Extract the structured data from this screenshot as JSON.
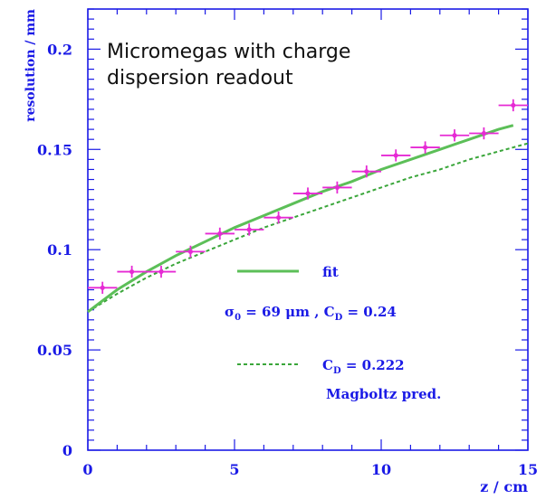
{
  "colors": {
    "frame": "#1a1ae6",
    "data_points": "#e62ad4",
    "fit_line": "#5cbf58",
    "prediction_line": "#3aa63a",
    "text": "#1a1ae6",
    "title_text": "#111111"
  },
  "chart_data": {
    "type": "scatter",
    "title_lines": [
      "Micromegas with charge",
      "dispersion readout"
    ],
    "xlabel": "z / cm",
    "ylabel": "resolution / mm",
    "xlim": [
      0,
      15
    ],
    "ylim": [
      0,
      0.22
    ],
    "x_ticks": [
      0,
      5,
      10,
      15
    ],
    "x_tick_labels": [
      "0",
      "5",
      "10",
      "15"
    ],
    "y_ticks": [
      0,
      0.05,
      0.1,
      0.15,
      0.2
    ],
    "y_tick_labels": [
      "0",
      "0.05",
      "0.1",
      "0.15",
      "0.2"
    ],
    "grid": false,
    "legend_position": "center-right",
    "series": [
      {
        "kind": "points",
        "style": "crosses with error bars",
        "x": [
          0.5,
          1.5,
          2.5,
          3.5,
          4.5,
          5.5,
          6.5,
          7.5,
          8.5,
          9.5,
          10.5,
          11.5,
          12.5,
          13.5,
          14.5
        ],
        "y": [
          0.081,
          0.089,
          0.089,
          0.099,
          0.108,
          0.11,
          0.116,
          0.128,
          0.131,
          0.139,
          0.147,
          0.151,
          0.157,
          0.158,
          0.172
        ],
        "x_err": 0.5,
        "y_err": 0.003
      },
      {
        "name": "fit",
        "kind": "line",
        "style": "solid",
        "x": [
          0,
          1,
          2,
          3,
          4,
          5,
          6,
          7,
          8,
          9,
          10,
          11,
          12,
          13,
          14,
          14.5
        ],
        "y": [
          0.069,
          0.08,
          0.089,
          0.097,
          0.104,
          0.111,
          0.117,
          0.123,
          0.129,
          0.134,
          0.14,
          0.145,
          0.15,
          0.155,
          0.16,
          0.162
        ]
      },
      {
        "name": "C_D = 0.222",
        "kind": "line",
        "style": "dashed",
        "x": [
          0,
          1,
          2,
          3,
          4,
          5,
          6,
          7,
          8,
          9,
          10,
          11,
          12,
          13,
          14,
          15
        ],
        "y": [
          0.069,
          0.078,
          0.086,
          0.093,
          0.099,
          0.105,
          0.111,
          0.116,
          0.121,
          0.126,
          0.131,
          0.136,
          0.14,
          0.145,
          0.149,
          0.153
        ]
      }
    ],
    "legend": {
      "fit_label": "fit",
      "fit_params_label": "σ₀ = 69 μm , C_D = 0.24",
      "pred_label": "C_D = 0.222",
      "pred_note": "Magboltz pred."
    }
  }
}
